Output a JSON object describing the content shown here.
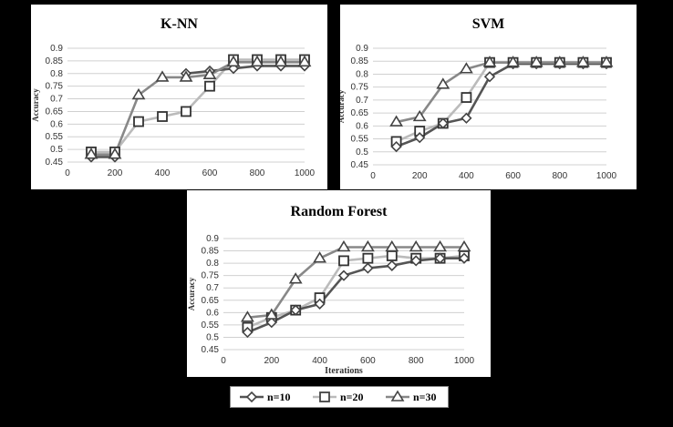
{
  "chart_data": [
    {
      "type": "line",
      "title": "K-NN",
      "xlabel": "",
      "ylabel": "Accuracy",
      "x": [
        100,
        200,
        300,
        400,
        500,
        600,
        700,
        800,
        900,
        1000
      ],
      "xticks": [
        0,
        200,
        400,
        600,
        800,
        1000
      ],
      "ylim": [
        0.45,
        0.9
      ],
      "yticks": [
        0.45,
        0.5,
        0.55,
        0.6,
        0.65,
        0.7,
        0.75,
        0.8,
        0.85,
        0.9
      ],
      "grid": true,
      "series": [
        {
          "name": "n=10",
          "values": [
            0.47,
            0.47,
            null,
            null,
            0.8,
            0.81,
            0.82,
            0.83,
            0.83,
            0.83
          ]
        },
        {
          "name": "n=20",
          "values": [
            0.49,
            0.49,
            0.61,
            0.63,
            0.65,
            0.75,
            0.855,
            0.855,
            0.855,
            0.855
          ]
        },
        {
          "name": "n=30",
          "values": [
            0.48,
            0.48,
            0.715,
            0.785,
            0.785,
            0.795,
            0.845,
            0.845,
            0.845,
            0.845
          ]
        }
      ]
    },
    {
      "type": "line",
      "title": "SVM",
      "xlabel": "",
      "ylabel": "Accuracy",
      "x": [
        100,
        200,
        300,
        400,
        500,
        600,
        700,
        800,
        900,
        1000
      ],
      "xticks": [
        0,
        200,
        400,
        600,
        800,
        1000
      ],
      "ylim": [
        0.45,
        0.9
      ],
      "yticks": [
        0.45,
        0.5,
        0.55,
        0.6,
        0.65,
        0.7,
        0.75,
        0.8,
        0.85,
        0.9
      ],
      "grid": true,
      "series": [
        {
          "name": "n=10",
          "values": [
            0.52,
            0.555,
            0.61,
            0.63,
            0.79,
            0.84,
            0.84,
            0.84,
            0.84,
            0.84
          ]
        },
        {
          "name": "n=20",
          "values": [
            0.54,
            0.58,
            0.61,
            0.71,
            0.845,
            0.845,
            0.845,
            0.845,
            0.845,
            0.845
          ]
        },
        {
          "name": "n=30",
          "values": [
            0.615,
            0.635,
            0.76,
            0.82,
            0.845,
            0.845,
            0.845,
            0.845,
            0.845,
            0.845
          ]
        }
      ]
    },
    {
      "type": "line",
      "title": "Random Forest",
      "xlabel": "Iterations",
      "ylabel": "Accuracy",
      "x": [
        100,
        200,
        300,
        400,
        500,
        600,
        700,
        800,
        900,
        1000
      ],
      "xticks": [
        0,
        200,
        400,
        600,
        800,
        1000
      ],
      "ylim": [
        0.45,
        0.9
      ],
      "yticks": [
        0.45,
        0.5,
        0.55,
        0.6,
        0.65,
        0.7,
        0.75,
        0.8,
        0.85,
        0.9
      ],
      "grid": true,
      "series": [
        {
          "name": "n=10",
          "values": [
            0.52,
            0.56,
            0.61,
            0.635,
            0.75,
            0.78,
            0.79,
            0.81,
            0.82,
            0.82
          ]
        },
        {
          "name": "n=20",
          "values": [
            0.54,
            0.58,
            0.61,
            0.66,
            0.81,
            0.82,
            0.83,
            0.82,
            0.82,
            0.83
          ]
        },
        {
          "name": "n=30",
          "values": [
            0.58,
            0.59,
            0.735,
            0.82,
            0.865,
            0.865,
            0.865,
            0.865,
            0.865,
            0.865
          ]
        }
      ]
    }
  ],
  "legend": {
    "items": [
      {
        "label": "n=10",
        "marker": "diamond",
        "color": "#555555"
      },
      {
        "label": "n=20",
        "marker": "square",
        "color": "#bbbbbb"
      },
      {
        "label": "n=30",
        "marker": "triangle",
        "color": "#888888"
      }
    ]
  }
}
